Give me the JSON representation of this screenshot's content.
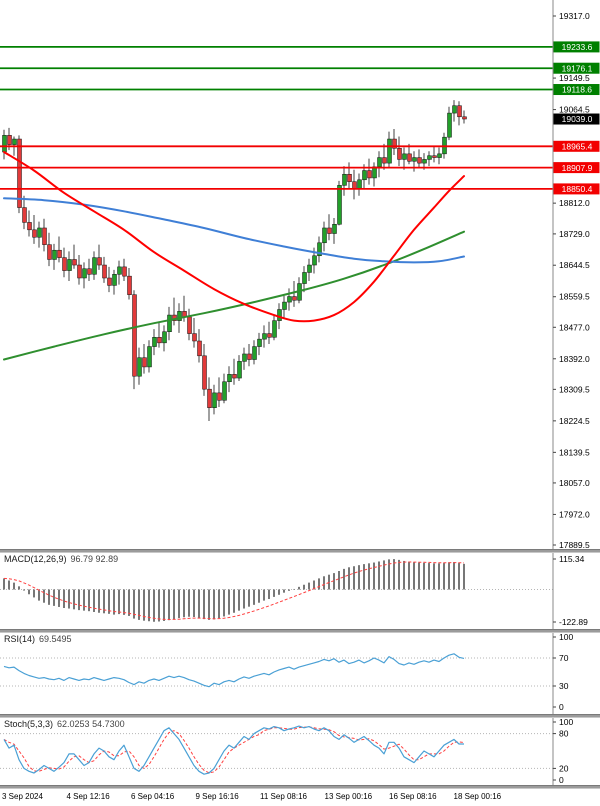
{
  "colors": {
    "resistance": "#008000",
    "support": "#f20000",
    "current_price_bg": "#000000",
    "candle_up": "#22a02a",
    "candle_down": "#e23a3a",
    "wick": "#111111",
    "ma_red": "#ff0000",
    "ma_blue": "#3f7fd6",
    "ma_green": "#2f8f2f",
    "macd_hist": "#555555",
    "signal_red": "#ff4040",
    "indicator_blue": "#4aa0d5",
    "axis_line": "#888888",
    "level_dotted": "#b5b5b5"
  },
  "chart_data": [
    {
      "type": "candlestick",
      "title": "",
      "y_axis": {
        "range": [
          17889.5,
          19317.0
        ],
        "ticks": [
          19317.0,
          19149.5,
          19064.5,
          18812.0,
          18729.0,
          18644.5,
          18559.5,
          18477.0,
          18392.0,
          18309.5,
          18224.5,
          18139.5,
          18057.0,
          17972.0,
          17889.5
        ]
      },
      "resistance_lines": [
        19233.6,
        19176.1,
        19118.6
      ],
      "support_lines": [
        18965.4,
        18907.9,
        18850.4
      ],
      "current_price": 19039.0,
      "time_labels": [
        "3 Sep 2024",
        "4 Sep 12:16",
        "6 Sep 04:16",
        "9 Sep 16:16",
        "11 Sep 08:16",
        "13 Sep 00:16",
        "16 Sep 08:16",
        "18 Sep 00:16"
      ],
      "candles": [
        [
          18950,
          19010,
          18930,
          18995
        ],
        [
          18995,
          19015,
          18955,
          18970
        ],
        [
          18970,
          18992,
          18940,
          18985
        ],
        [
          18985,
          18995,
          18785,
          18800
        ],
        [
          18800,
          18832,
          18742,
          18760
        ],
        [
          18760,
          18792,
          18722,
          18740
        ],
        [
          18740,
          18780,
          18702,
          18720
        ],
        [
          18720,
          18762,
          18692,
          18745
        ],
        [
          18745,
          18770,
          18682,
          18700
        ],
        [
          18700,
          18732,
          18642,
          18660
        ],
        [
          18660,
          18702,
          18632,
          18685
        ],
        [
          18685,
          18722,
          18652,
          18665
        ],
        [
          18665,
          18692,
          18612,
          18630
        ],
        [
          18630,
          18682,
          18602,
          18660
        ],
        [
          18660,
          18700,
          18635,
          18645
        ],
        [
          18645,
          18672,
          18592,
          18610
        ],
        [
          18610,
          18652,
          18582,
          18635
        ],
        [
          18635,
          18662,
          18602,
          18620
        ],
        [
          18620,
          18682,
          18605,
          18665
        ],
        [
          18665,
          18700,
          18632,
          18645
        ],
        [
          18645,
          18667,
          18597,
          18610
        ],
        [
          18610,
          18640,
          18572,
          18590
        ],
        [
          18590,
          18632,
          18565,
          18620
        ],
        [
          18620,
          18657,
          18592,
          18640
        ],
        [
          18640,
          18662,
          18602,
          18615
        ],
        [
          18615,
          18637,
          18552,
          18565
        ],
        [
          18565,
          18577,
          18310,
          18345
        ],
        [
          18345,
          18422,
          18322,
          18395
        ],
        [
          18395,
          18432,
          18352,
          18370
        ],
        [
          18370,
          18442,
          18355,
          18425
        ],
        [
          18425,
          18472,
          18402,
          18450
        ],
        [
          18450,
          18492,
          18422,
          18435
        ],
        [
          18435,
          18482,
          18412,
          18465
        ],
        [
          18465,
          18532,
          18442,
          18510
        ],
        [
          18510,
          18557,
          18482,
          18495
        ],
        [
          18495,
          18542,
          18462,
          18520
        ],
        [
          18520,
          18562,
          18492,
          18505
        ],
        [
          18505,
          18527,
          18442,
          18460
        ],
        [
          18460,
          18502,
          18422,
          18440
        ],
        [
          18440,
          18472,
          18382,
          18400
        ],
        [
          18400,
          18432,
          18292,
          18310
        ],
        [
          18310,
          18342,
          18224,
          18260
        ],
        [
          18260,
          18322,
          18242,
          18300
        ],
        [
          18300,
          18342,
          18262,
          18280
        ],
        [
          18280,
          18352,
          18272,
          18330
        ],
        [
          18330,
          18372,
          18302,
          18350
        ],
        [
          18350,
          18392,
          18322,
          18340
        ],
        [
          18340,
          18402,
          18332,
          18385
        ],
        [
          18385,
          18422,
          18362,
          18405
        ],
        [
          18405,
          18432,
          18372,
          18390
        ],
        [
          18390,
          18442,
          18377,
          18425
        ],
        [
          18425,
          18462,
          18402,
          18445
        ],
        [
          18445,
          18482,
          18422,
          18460
        ],
        [
          18460,
          18492,
          18432,
          18450
        ],
        [
          18450,
          18512,
          18442,
          18495
        ],
        [
          18495,
          18542,
          18472,
          18525
        ],
        [
          18525,
          18562,
          18502,
          18545
        ],
        [
          18545,
          18582,
          18522,
          18560
        ],
        [
          18560,
          18602,
          18532,
          18550
        ],
        [
          18550,
          18612,
          18542,
          18595
        ],
        [
          18595,
          18642,
          18572,
          18625
        ],
        [
          18625,
          18662,
          18602,
          18645
        ],
        [
          18645,
          18692,
          18622,
          18670
        ],
        [
          18670,
          18722,
          18652,
          18705
        ],
        [
          18705,
          18762,
          18682,
          18745
        ],
        [
          18745,
          18782,
          18712,
          18730
        ],
        [
          18730,
          18772,
          18702,
          18755
        ],
        [
          18755,
          18872,
          18752,
          18860
        ],
        [
          18860,
          18912,
          18832,
          18890
        ],
        [
          18890,
          18922,
          18852,
          18870
        ],
        [
          18870,
          18902,
          18822,
          18850
        ],
        [
          18850,
          18892,
          18832,
          18875
        ],
        [
          18875,
          18917,
          18852,
          18900
        ],
        [
          18900,
          18932,
          18862,
          18880
        ],
        [
          18880,
          18922,
          18857,
          18910
        ],
        [
          18910,
          18952,
          18882,
          18935
        ],
        [
          18935,
          18972,
          18902,
          18920
        ],
        [
          18920,
          19005,
          18907,
          18985
        ],
        [
          18985,
          19012,
          18942,
          18960
        ],
        [
          18960,
          18992,
          18912,
          18930
        ],
        [
          18930,
          18962,
          18902,
          18945
        ],
        [
          18945,
          18972,
          18917,
          18925
        ],
        [
          18925,
          18952,
          18897,
          18935
        ],
        [
          18935,
          18957,
          18907,
          18920
        ],
        [
          18920,
          18947,
          18902,
          18930
        ],
        [
          18930,
          18952,
          18912,
          18940
        ],
        [
          18940,
          18967,
          18922,
          18935
        ],
        [
          18935,
          18962,
          18917,
          18945
        ],
        [
          18945,
          19002,
          18932,
          18990
        ],
        [
          18990,
          19072,
          18982,
          19055
        ],
        [
          19055,
          19090,
          19032,
          19075
        ],
        [
          19075,
          19087,
          19022,
          19045
        ],
        [
          19045,
          19062,
          19027,
          19039
        ]
      ],
      "ma_red": [
        [
          0,
          18950
        ],
        [
          6,
          18900
        ],
        [
          12,
          18840
        ],
        [
          18,
          18790
        ],
        [
          24,
          18740
        ],
        [
          30,
          18680
        ],
        [
          36,
          18630
        ],
        [
          42,
          18580
        ],
        [
          48,
          18540
        ],
        [
          54,
          18510
        ],
        [
          58,
          18495
        ],
        [
          62,
          18495
        ],
        [
          66,
          18510
        ],
        [
          70,
          18545
        ],
        [
          74,
          18600
        ],
        [
          78,
          18670
        ],
        [
          82,
          18740
        ],
        [
          86,
          18800
        ],
        [
          89,
          18845
        ],
        [
          92,
          18885
        ]
      ],
      "ma_blue": [
        [
          0,
          18825
        ],
        [
          8,
          18820
        ],
        [
          16,
          18808
        ],
        [
          24,
          18790
        ],
        [
          32,
          18768
        ],
        [
          40,
          18745
        ],
        [
          48,
          18718
        ],
        [
          56,
          18695
        ],
        [
          64,
          18675
        ],
        [
          70,
          18662
        ],
        [
          76,
          18655
        ],
        [
          82,
          18652
        ],
        [
          87,
          18655
        ],
        [
          92,
          18668
        ]
      ],
      "ma_green": [
        [
          0,
          18390
        ],
        [
          10,
          18425
        ],
        [
          20,
          18458
        ],
        [
          30,
          18488
        ],
        [
          40,
          18515
        ],
        [
          50,
          18545
        ],
        [
          60,
          18578
        ],
        [
          68,
          18608
        ],
        [
          76,
          18645
        ],
        [
          84,
          18688
        ],
        [
          92,
          18735
        ]
      ]
    },
    {
      "type": "macd",
      "label": "MACD(12,26,9)",
      "values_label": "96.79 92.89",
      "range": [
        -122.89,
        115.34
      ],
      "y_ticks": [
        115.34,
        -122.89
      ],
      "histogram": [
        42,
        34,
        26,
        12,
        -4,
        -18,
        -30,
        -42,
        -50,
        -58,
        -62,
        -66,
        -70,
        -72,
        -75,
        -78,
        -80,
        -82,
        -85,
        -88,
        -90,
        -92,
        -95,
        -93,
        -96,
        -100,
        -110,
        -115,
        -118,
        -120,
        -122,
        -121,
        -119,
        -116,
        -112,
        -108,
        -105,
        -103,
        -104,
        -108,
        -112,
        -115,
        -113,
        -108,
        -102,
        -95,
        -88,
        -80,
        -72,
        -65,
        -58,
        -50,
        -42,
        -36,
        -28,
        -20,
        -12,
        -5,
        2,
        10,
        18,
        26,
        34,
        42,
        50,
        56,
        62,
        70,
        78,
        84,
        88,
        92,
        96,
        99,
        102,
        106,
        110,
        114,
        115,
        112,
        108,
        105,
        103,
        102,
        101,
        100,
        99,
        99,
        100,
        103,
        104,
        100,
        97
      ]
    },
    {
      "type": "line",
      "label": "RSI(14)",
      "values_label": "69.5495",
      "range": [
        0,
        100
      ],
      "y_ticks": [
        100,
        70,
        30,
        0
      ],
      "levels": [
        70,
        30
      ],
      "values": [
        58,
        56,
        57,
        52,
        48,
        45,
        43,
        41,
        42,
        40,
        39,
        41,
        38,
        42,
        40,
        38,
        40,
        39,
        42,
        40,
        38,
        40,
        42,
        41,
        39,
        35,
        32,
        36,
        34,
        38,
        40,
        38,
        41,
        44,
        42,
        44,
        42,
        39,
        37,
        34,
        31,
        29,
        34,
        32,
        36,
        38,
        36,
        40,
        43,
        41,
        44,
        46,
        48,
        46,
        50,
        53,
        55,
        57,
        54,
        57,
        59,
        61,
        63,
        65,
        68,
        66,
        69,
        64,
        67,
        62,
        64,
        67,
        63,
        66,
        70,
        67,
        63,
        72,
        68,
        62,
        60,
        63,
        61,
        64,
        66,
        64,
        67,
        65,
        70,
        74,
        76,
        71,
        69.5
      ]
    },
    {
      "type": "line",
      "label": "Stoch(5,3,3)",
      "values_label": "62.0253 54.7300",
      "range": [
        0,
        100
      ],
      "y_ticks": [
        100,
        80,
        20,
        0
      ],
      "levels": [
        80,
        20
      ],
      "k": [
        70,
        55,
        60,
        35,
        20,
        15,
        12,
        18,
        25,
        20,
        15,
        22,
        30,
        45,
        45,
        35,
        25,
        30,
        45,
        55,
        50,
        40,
        35,
        50,
        60,
        40,
        20,
        15,
        25,
        40,
        55,
        70,
        85,
        90,
        80,
        70,
        55,
        40,
        25,
        15,
        10,
        12,
        20,
        35,
        50,
        60,
        55,
        65,
        75,
        70,
        80,
        85,
        90,
        88,
        92,
        90,
        85,
        88,
        90,
        93,
        90,
        92,
        88,
        85,
        90,
        85,
        75,
        70,
        78,
        72,
        65,
        70,
        75,
        68,
        60,
        55,
        45,
        65,
        65,
        55,
        40,
        35,
        30,
        40,
        50,
        45,
        40,
        50,
        60,
        65,
        70,
        62,
        62
      ]
    }
  ]
}
